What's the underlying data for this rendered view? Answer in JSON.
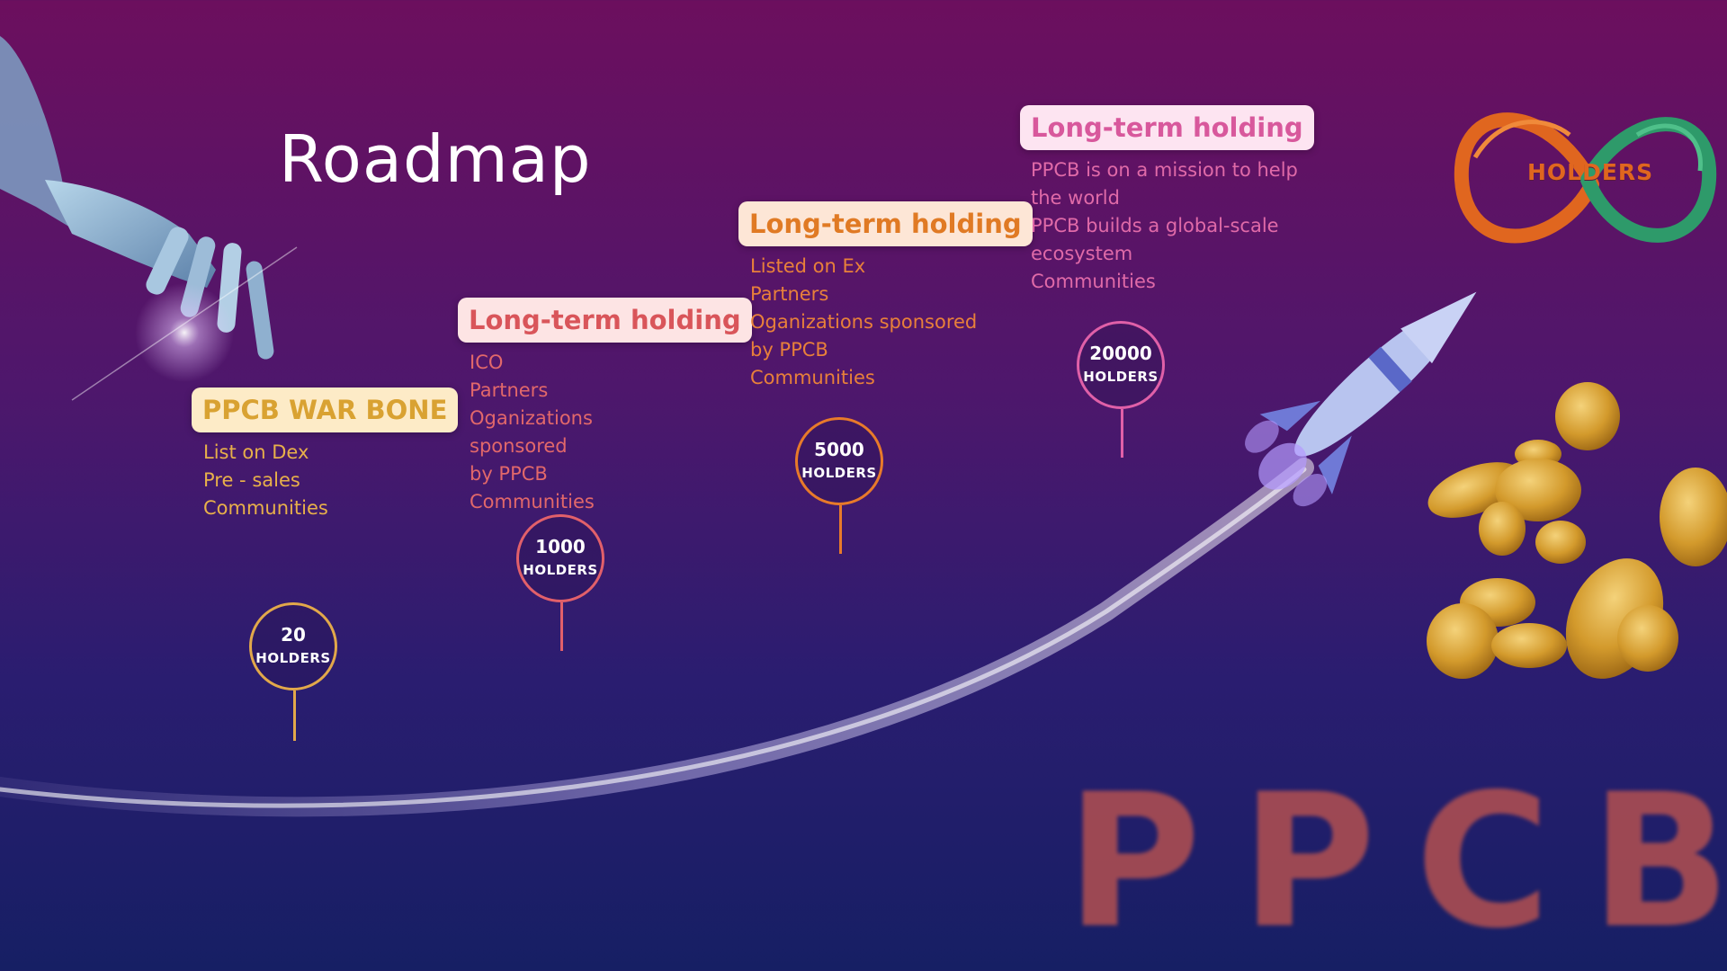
{
  "title": "Roadmap",
  "stages": [
    {
      "heading": "PPCB WAR BONE",
      "items": [
        "List on Dex",
        "Pre - sales",
        "Communities"
      ],
      "milestone": {
        "value": "20",
        "unit": "HOLDERS"
      },
      "color": "#e2a84a"
    },
    {
      "heading": "Long-term holding",
      "items": [
        "ICO",
        "Partners",
        "Oganizations sponsored",
        "by PPCB",
        "Communities"
      ],
      "milestone": {
        "value": "1000",
        "unit": "HOLDERS"
      },
      "color": "#e2606a"
    },
    {
      "heading": "Long-term holding",
      "items": [
        "Listed on Ex",
        "Partners",
        "Oganizations sponsored",
        "by PPCB",
        "Communities"
      ],
      "milestone": {
        "value": "5000",
        "unit": "HOLDERS"
      },
      "color": "#e87a2a"
    },
    {
      "heading": "Long-term holding",
      "items": [
        "PPCB is on a mission to help",
        "the world",
        "PPCB builds a global-scale",
        "ecosystem",
        "Communities"
      ],
      "milestone": {
        "value": "20000",
        "unit": "HOLDERS"
      },
      "color": "#e060a8"
    }
  ],
  "logo": {
    "text": "HOLDERS",
    "colors": [
      "#e0661f",
      "#2e9a6a"
    ]
  },
  "brand_text": "PPCB",
  "decorations": [
    "robot-hand",
    "rocket",
    "trail",
    "bitcoin-coins"
  ]
}
